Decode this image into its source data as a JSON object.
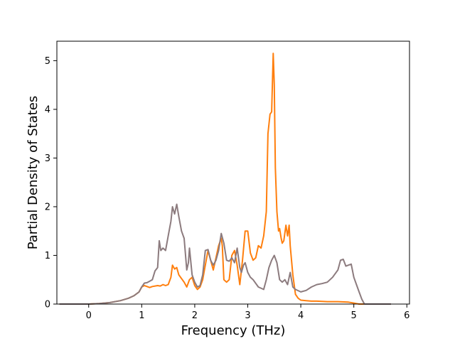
{
  "chart_data": {
    "type": "line",
    "title": "",
    "xlabel": "Frequency (THz)",
    "ylabel": "Partial Density of States",
    "xlim": [
      -0.6,
      6.05
    ],
    "ylim": [
      0,
      5.4
    ],
    "xticks": [
      0,
      1,
      2,
      3,
      4,
      5,
      6
    ],
    "yticks": [
      0,
      1,
      2,
      3,
      4,
      5
    ],
    "grid": false,
    "legend": "none",
    "series": [
      {
        "color": "#ff7f0e",
        "x": [
          -0.55,
          0.0,
          0.2,
          0.4,
          0.6,
          0.75,
          0.85,
          0.95,
          1.0,
          1.05,
          1.1,
          1.15,
          1.2,
          1.3,
          1.35,
          1.4,
          1.45,
          1.5,
          1.55,
          1.58,
          1.62,
          1.66,
          1.7,
          1.8,
          1.85,
          1.9,
          1.95,
          2.0,
          2.05,
          2.1,
          2.15,
          2.2,
          2.25,
          2.3,
          2.35,
          2.4,
          2.45,
          2.5,
          2.52,
          2.55,
          2.6,
          2.65,
          2.7,
          2.75,
          2.8,
          2.85,
          2.9,
          2.95,
          3.0,
          3.05,
          3.1,
          3.15,
          3.2,
          3.25,
          3.3,
          3.35,
          3.38,
          3.42,
          3.45,
          3.48,
          3.5,
          3.52,
          3.55,
          3.58,
          3.6,
          3.63,
          3.65,
          3.68,
          3.72,
          3.75,
          3.78,
          3.8,
          3.85,
          3.9,
          3.95,
          4.0,
          4.1,
          4.2,
          4.3,
          4.5,
          4.7,
          4.9,
          5.0,
          5.05,
          5.1,
          5.2,
          5.4,
          5.7
        ],
        "y": [
          0.0,
          0.0,
          0.01,
          0.03,
          0.07,
          0.12,
          0.17,
          0.25,
          0.35,
          0.38,
          0.36,
          0.34,
          0.36,
          0.38,
          0.37,
          0.4,
          0.38,
          0.4,
          0.55,
          0.8,
          0.72,
          0.75,
          0.6,
          0.45,
          0.35,
          0.5,
          0.55,
          0.38,
          0.3,
          0.35,
          0.5,
          0.8,
          1.1,
          0.9,
          0.7,
          0.95,
          1.2,
          1.35,
          1.2,
          0.5,
          0.45,
          0.5,
          1.0,
          1.1,
          0.8,
          0.4,
          0.9,
          1.5,
          1.5,
          1.05,
          0.9,
          0.95,
          1.2,
          1.15,
          1.4,
          1.9,
          3.5,
          3.9,
          3.95,
          5.15,
          4.5,
          2.8,
          1.9,
          1.5,
          1.55,
          1.35,
          1.25,
          1.3,
          1.62,
          1.4,
          1.62,
          1.2,
          0.6,
          0.2,
          0.12,
          0.08,
          0.07,
          0.06,
          0.06,
          0.05,
          0.05,
          0.04,
          0.02,
          0.01,
          0.0,
          0.0,
          0.0,
          0.0
        ]
      },
      {
        "color": "#8c7b7e",
        "x": [
          -0.55,
          0.0,
          0.2,
          0.4,
          0.6,
          0.75,
          0.85,
          0.95,
          1.0,
          1.05,
          1.1,
          1.2,
          1.25,
          1.3,
          1.33,
          1.36,
          1.4,
          1.45,
          1.5,
          1.55,
          1.58,
          1.62,
          1.66,
          1.7,
          1.75,
          1.8,
          1.85,
          1.88,
          1.9,
          1.95,
          2.0,
          2.05,
          2.1,
          2.15,
          2.2,
          2.25,
          2.3,
          2.35,
          2.4,
          2.45,
          2.5,
          2.55,
          2.6,
          2.65,
          2.7,
          2.75,
          2.8,
          2.85,
          2.88,
          2.92,
          2.95,
          3.0,
          3.05,
          3.1,
          3.2,
          3.3,
          3.35,
          3.4,
          3.45,
          3.5,
          3.55,
          3.6,
          3.65,
          3.7,
          3.75,
          3.8,
          3.85,
          3.9,
          4.0,
          4.1,
          4.2,
          4.3,
          4.4,
          4.5,
          4.6,
          4.7,
          4.75,
          4.8,
          4.85,
          4.9,
          4.95,
          5.0,
          5.05,
          5.1,
          5.15,
          5.2,
          5.4,
          5.7
        ],
        "y": [
          0.0,
          0.0,
          0.01,
          0.03,
          0.07,
          0.12,
          0.17,
          0.25,
          0.35,
          0.43,
          0.44,
          0.5,
          0.68,
          0.75,
          1.3,
          1.1,
          1.15,
          1.1,
          1.4,
          1.7,
          2.0,
          1.85,
          2.05,
          1.8,
          1.5,
          1.35,
          0.7,
          0.85,
          1.15,
          0.6,
          0.45,
          0.35,
          0.38,
          0.6,
          1.1,
          1.12,
          0.9,
          0.8,
          0.9,
          1.1,
          1.45,
          1.25,
          0.9,
          0.88,
          0.95,
          0.85,
          1.15,
          0.75,
          0.65,
          0.8,
          0.85,
          0.65,
          0.55,
          0.5,
          0.35,
          0.3,
          0.5,
          0.75,
          0.9,
          1.0,
          0.85,
          0.5,
          0.45,
          0.5,
          0.4,
          0.65,
          0.35,
          0.3,
          0.25,
          0.28,
          0.35,
          0.4,
          0.42,
          0.45,
          0.55,
          0.7,
          0.9,
          0.92,
          0.78,
          0.8,
          0.82,
          0.55,
          0.4,
          0.25,
          0.1,
          0.0,
          0.0,
          0.0
        ]
      }
    ]
  }
}
